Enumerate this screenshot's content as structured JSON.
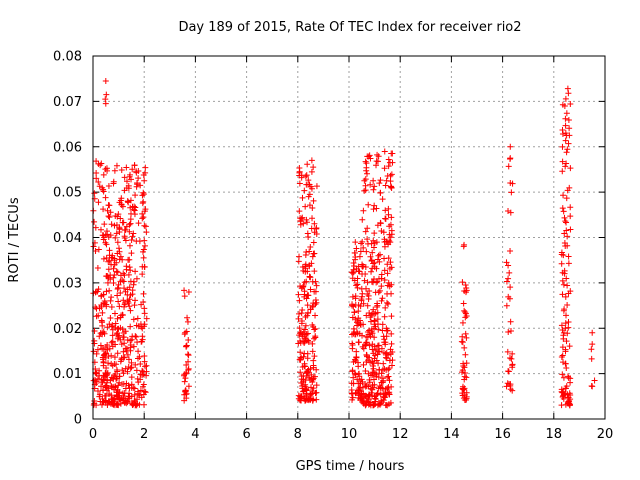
{
  "chart_data": {
    "type": "scatter",
    "title": "Day 189 of 2015, Rate Of TEC Index for receiver rio2",
    "xlabel": "GPS time / hours",
    "ylabel": "ROTI / TECUs",
    "xlim": [
      0,
      20
    ],
    "ylim": [
      0,
      0.08
    ],
    "xticks": [
      0,
      2,
      4,
      6,
      8,
      10,
      12,
      14,
      16,
      18,
      20
    ],
    "xtick_labels": [
      "0",
      "2",
      "4",
      "6",
      "8",
      "10",
      "12",
      "14",
      "16",
      "18",
      "20"
    ],
    "yticks": [
      0,
      0.01,
      0.02,
      0.03,
      0.04,
      0.05,
      0.06,
      0.07,
      0.08
    ],
    "ytick_labels": [
      "0",
      "0.01",
      "0.02",
      "0.03",
      "0.04",
      "0.05",
      "0.06",
      "0.07",
      "0.08"
    ],
    "grid": true,
    "marker": "+",
    "color": "#ff0000",
    "point_clusters": [
      {
        "x_start": 0.0,
        "x_end": 0.4,
        "y_min": 0.003,
        "y_max": 0.057,
        "count": 90
      },
      {
        "x_start": 0.4,
        "x_end": 1.4,
        "y_min": 0.003,
        "y_max": 0.056,
        "count": 320
      },
      {
        "x_start": 1.4,
        "x_end": 2.1,
        "y_min": 0.003,
        "y_max": 0.056,
        "count": 170
      },
      {
        "x_start": 3.55,
        "x_end": 3.75,
        "y_min": 0.004,
        "y_max": 0.029,
        "count": 35
      },
      {
        "x_start": 8.0,
        "x_end": 8.75,
        "y_min": 0.004,
        "y_max": 0.057,
        "count": 230
      },
      {
        "x_start": 10.1,
        "x_end": 10.5,
        "y_min": 0.004,
        "y_max": 0.039,
        "count": 110
      },
      {
        "x_start": 10.5,
        "x_end": 11.7,
        "y_min": 0.003,
        "y_max": 0.059,
        "count": 360
      },
      {
        "x_start": 14.4,
        "x_end": 14.6,
        "y_min": 0.004,
        "y_max": 0.039,
        "count": 45
      },
      {
        "x_start": 16.15,
        "x_end": 16.4,
        "y_min": 0.006,
        "y_max": 0.06,
        "count": 35
      },
      {
        "x_start": 18.3,
        "x_end": 18.65,
        "y_min": 0.003,
        "y_max": 0.073,
        "count": 120
      },
      {
        "x_start": 19.4,
        "x_end": 19.6,
        "y_min": 0.007,
        "y_max": 0.019,
        "count": 4
      }
    ],
    "notable_points": [
      {
        "x": 0.5,
        "y": 0.0745
      },
      {
        "x": 0.52,
        "y": 0.0715
      },
      {
        "x": 0.48,
        "y": 0.0705
      },
      {
        "x": 0.5,
        "y": 0.0695
      },
      {
        "x": 18.55,
        "y": 0.0728
      },
      {
        "x": 18.57,
        "y": 0.0718
      },
      {
        "x": 16.3,
        "y": 0.06
      },
      {
        "x": 16.3,
        "y": 0.0575
      },
      {
        "x": 16.3,
        "y": 0.052
      },
      {
        "x": 18.5,
        "y": 0.0588
      },
      {
        "x": 18.48,
        "y": 0.0563
      },
      {
        "x": 11.65,
        "y": 0.0585
      },
      {
        "x": 11.6,
        "y": 0.0565
      },
      {
        "x": 8.55,
        "y": 0.057
      },
      {
        "x": 8.6,
        "y": 0.0555
      },
      {
        "x": 14.5,
        "y": 0.0282
      },
      {
        "x": 19.5,
        "y": 0.019
      },
      {
        "x": 19.5,
        "y": 0.0165
      },
      {
        "x": 19.5,
        "y": 0.0072
      }
    ]
  }
}
